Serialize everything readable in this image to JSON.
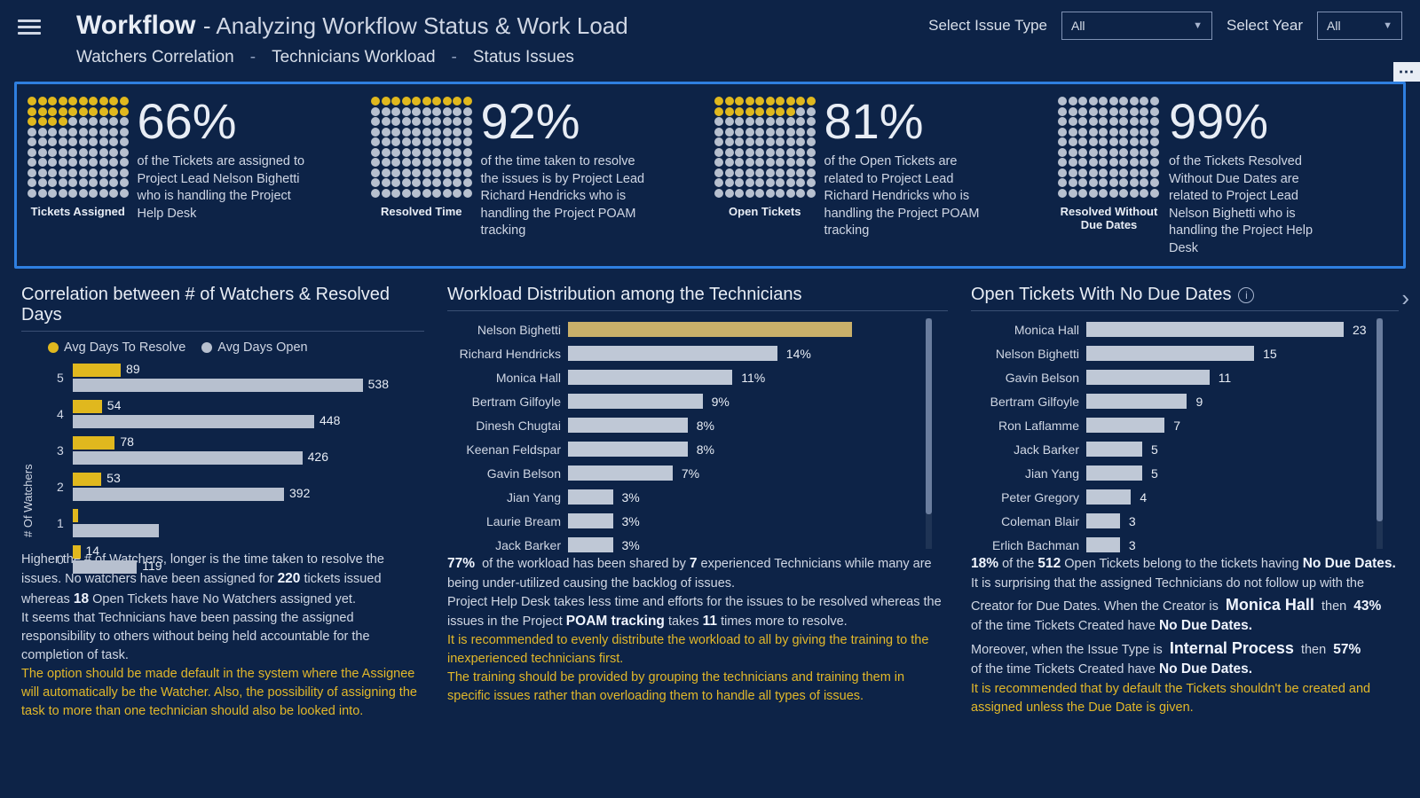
{
  "header": {
    "title_main": "Workflow",
    "title_sub": "- Analyzing Workflow Status & Work Load",
    "filter1_label": "Select Issue Type",
    "filter1_value": "All",
    "filter2_label": "Select Year",
    "filter2_value": "All"
  },
  "subnav": {
    "a": "Watchers Correlation",
    "b": "Technicians Workload",
    "c": "Status Issues"
  },
  "kpi": [
    {
      "pct": "66%",
      "fill": 24,
      "label": "Tickets Assigned",
      "desc": "of the Tickets are assigned to Project Lead Nelson Bighetti who is handling the Project Help Desk"
    },
    {
      "pct": "92%",
      "fill": 10,
      "label": "Resolved Time",
      "desc": "of the time taken to resolve the issues is by Project Lead Richard Hendricks who is handling the Project POAM tracking"
    },
    {
      "pct": "81%",
      "fill": 18,
      "label": "Open Tickets",
      "desc": "of the Open Tickets are related to Project Lead Richard Hendricks who is handling the Project POAM tracking"
    },
    {
      "pct": "99%",
      "fill": 0,
      "label": "Resolved Without Due Dates",
      "desc": "of the Tickets Resolved Without Due Dates are related to Project Lead Nelson Bighetti who is handling the Project Help Desk"
    }
  ],
  "panel1": {
    "title": "Correlation between # of Watchers & Resolved Days",
    "legend_a": "Avg Days To Resolve",
    "legend_b": "Avg Days Open",
    "yaxis": "# Of Watchers",
    "rows": [
      {
        "y": "5",
        "a": 89,
        "b": 538
      },
      {
        "y": "4",
        "a": 54,
        "b": 448
      },
      {
        "y": "3",
        "a": 78,
        "b": 426
      },
      {
        "y": "2",
        "a": 53,
        "b": 392
      },
      {
        "y": "1",
        "a": 10,
        "b": 160,
        "hide_a_label": true,
        "hide_b_label": true
      },
      {
        "y": "0",
        "a": 14,
        "b": 119
      }
    ],
    "max_b": 560,
    "text1": "Higher the # of Watchers, longer is the time taken to resolve the issues. No watchers have been assigned for",
    "b1": "220",
    "text1b": "tickets issued whereas",
    "b2": "18",
    "text1c": "Open Tickets have No Watchers assigned yet.",
    "text2": "It seems that Technicians have been passing the assigned responsibility to others without being held accountable for the completion of task.",
    "rec": "The option should be made default in the system where the Assignee will automatically be the Watcher. Also, the possibility of assigning the task to more than one technician should also be looked into."
  },
  "panel2": {
    "title": "Workload Distribution among the Technicians",
    "rows": [
      {
        "name": "Nelson Bighetti",
        "pct": 19,
        "val": "19%",
        "hide_val": true,
        "hl": true
      },
      {
        "name": "Richard Hendricks",
        "pct": 14,
        "val": "14%"
      },
      {
        "name": "Monica Hall",
        "pct": 11,
        "val": "11%"
      },
      {
        "name": "Bertram Gilfoyle",
        "pct": 9,
        "val": "9%"
      },
      {
        "name": "Dinesh Chugtai",
        "pct": 8,
        "val": "8%"
      },
      {
        "name": "Keenan Feldspar",
        "pct": 8,
        "val": "8%"
      },
      {
        "name": "Gavin Belson",
        "pct": 7,
        "val": "7%"
      },
      {
        "name": "Jian Yang",
        "pct": 3,
        "val": "3%"
      },
      {
        "name": "Laurie Bream",
        "pct": 3,
        "val": "3%"
      },
      {
        "name": "Jack Barker",
        "pct": 3,
        "val": "3%"
      }
    ],
    "max": 19,
    "s1a": "77%",
    "s1b": "of the workload has been shared by",
    "s1c": "7",
    "s1d": "experienced Technicians while many are being under-utilized causing the backlog of issues.",
    "s2a": "Project Help Desk takes less time and efforts for the issues to be resolved whereas the issues in the Project",
    "s2b": "POAM tracking",
    "s2c": "takes",
    "s2d": "11",
    "s2e": "times more to resolve.",
    "rec1": "It is recommended to evenly distribute the workload to all by giving the training to the inexperienced technicians first.",
    "rec2": "The training should be provided by grouping the technicians and training them in specific issues rather than overloading them to handle all types of issues."
  },
  "panel3": {
    "title": "Open Tickets With No Due Dates",
    "rows": [
      {
        "name": "Monica Hall",
        "v": 23
      },
      {
        "name": "Nelson Bighetti",
        "v": 15
      },
      {
        "name": "Gavin Belson",
        "v": 11
      },
      {
        "name": "Bertram Gilfoyle",
        "v": 9
      },
      {
        "name": "Ron Laflamme",
        "v": 7
      },
      {
        "name": "Jack Barker",
        "v": 5
      },
      {
        "name": "Jian Yang",
        "v": 5
      },
      {
        "name": "Peter Gregory",
        "v": 4
      },
      {
        "name": "Coleman Blair",
        "v": 3
      },
      {
        "name": "Erlich Bachman",
        "v": 3
      }
    ],
    "max": 23,
    "s1a": "18%",
    "s1b": "of the",
    "s1c": "512",
    "s1d": "Open Tickets belong to the tickets having",
    "s1e": "No Due Dates.",
    "s1f": "It is surprising that the assigned Technicians do not follow up with the Creator for Due Dates. When the Creator is",
    "s1g": "Monica Hall",
    "s1h": "then",
    "s1i": "43%",
    "s1j": "of the time Tickets Created have",
    "s1k": "No Due Dates.",
    "s2a": "Moreover, when the Issue Type is",
    "s2b": "Internal Process",
    "s2c": "then",
    "s2d": "57%",
    "s2e": "of the time Tickets Created have",
    "s2f": "No Due Dates.",
    "rec": "It is recommended that by default the Tickets shouldn't be created and assigned unless the Due Date is given."
  }
}
